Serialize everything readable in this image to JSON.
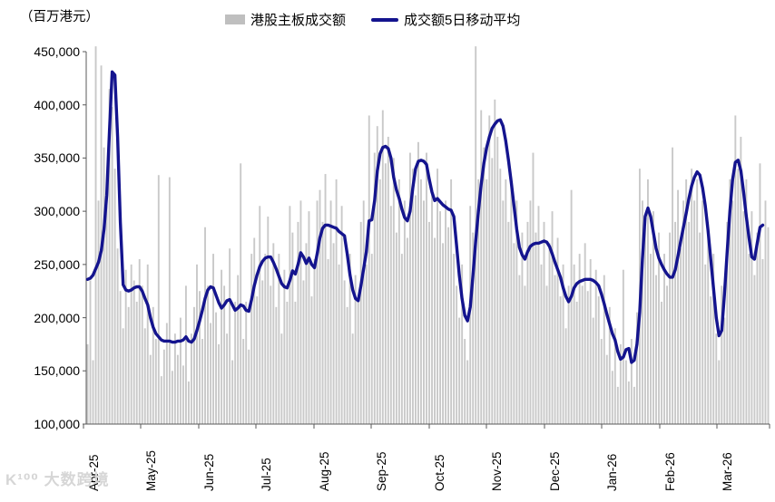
{
  "unit_label": "（百万港元）",
  "legend": {
    "bars": "港股主板成交额",
    "line": "成交额5日移动平均"
  },
  "watermark": {
    "logo": "K¹⁰⁰",
    "text": "大数跨境"
  },
  "chart_data": {
    "type": "bar",
    "subtype": "daily bars with 5-day moving-average line overlay",
    "title": "",
    "ylabel": "（百万港元）",
    "ylim": [
      100000,
      450000
    ],
    "ytick_labels": [
      "450,000",
      "400,000",
      "350,000",
      "300,000",
      "250,000",
      "200,000",
      "150,000",
      "100,000"
    ],
    "x_labels": [
      "Apr-25",
      "May-25",
      "Jun-25",
      "Jul-25",
      "Aug-25",
      "Sep-25",
      "Oct-25",
      "Nov-25",
      "Dec-25",
      "Jan-26",
      "Feb-26",
      "Mar-26"
    ],
    "grid": false,
    "legend_position": "top-center",
    "colors": {
      "bar": "#c9c9c9",
      "line": "#14148E",
      "axis": "#595959",
      "text": "#000000"
    },
    "series": [
      {
        "name": "港股主板成交额",
        "type": "bar",
        "color": "#c9c9c9",
        "values": [
          175000,
          235000,
          160000,
          455000,
          310000,
          437000,
          360000,
          305000,
          415000,
          398000,
          340000,
          265000,
          225000,
          190000,
          245000,
          210000,
          250000,
          235000,
          215000,
          255000,
          230000,
          190000,
          250000,
          165000,
          210000,
          180000,
          334000,
          145000,
          170000,
          195000,
          332000,
          150000,
          185000,
          165000,
          200000,
          155000,
          230000,
          140000,
          185000,
          210000,
          250000,
          225000,
          180000,
          285000,
          230000,
          195000,
          260000,
          205000,
          175000,
          245000,
          230000,
          185000,
          265000,
          160000,
          215000,
          240000,
          345000,
          180000,
          215000,
          170000,
          260000,
          275000,
          220000,
          305000,
          235000,
          260000,
          295000,
          230000,
          270000,
          210000,
          260000,
          185000,
          245000,
          215000,
          305000,
          280000,
          215000,
          290000,
          310000,
          235000,
          270000,
          300000,
          220000,
          255000,
          310000,
          320000,
          290000,
          335000,
          255000,
          310000,
          270000,
          330000,
          250000,
          305000,
          235000,
          210000,
          260000,
          185000,
          240000,
          215000,
          290000,
          310000,
          250000,
          390000,
          260000,
          355000,
          380000,
          330000,
          395000,
          345000,
          370000,
          305000,
          350000,
          280000,
          330000,
          260000,
          310000,
          275000,
          355000,
          340000,
          315000,
          365000,
          330000,
          310000,
          355000,
          290000,
          320000,
          275000,
          340000,
          300000,
          270000,
          310000,
          285000,
          330000,
          260000,
          230000,
          200000,
          250000,
          180000,
          160000,
          305000,
          280000,
          455000,
          330000,
          395000,
          360000,
          330000,
          390000,
          350000,
          405000,
          370000,
          340000,
          310000,
          330000,
          290000,
          330000,
          270000,
          310000,
          240000,
          280000,
          230000,
          290000,
          310000,
          355000,
          280000,
          305000,
          250000,
          290000,
          230000,
          270000,
          300000,
          240000,
          275000,
          220000,
          250000,
          190000,
          230000,
          320000,
          250000,
          215000,
          260000,
          230000,
          270000,
          225000,
          255000,
          200000,
          245000,
          220000,
          180000,
          240000,
          165000,
          210000,
          150000,
          190000,
          135000,
          175000,
          245000,
          160000,
          140000,
          180000,
          135000,
          205000,
          340000,
          310000,
          285000,
          330000,
          260000,
          300000,
          240000,
          280000,
          215000,
          260000,
          230000,
          280000,
          360000,
          290000,
          320000,
          265000,
          310000,
          330000,
          290000,
          340000,
          310000,
          330000,
          280000,
          310000,
          250000,
          290000,
          220000,
          260000,
          185000,
          160000,
          230000,
          200000,
          290000,
          330000,
          310000,
          390000,
          340000,
          370000,
          300000,
          330000,
          260000,
          300000,
          240000,
          280000,
          345000,
          255000,
          310000,
          285000
        ]
      },
      {
        "name": "成交额5日移动平均",
        "type": "line",
        "color": "#14148E",
        "values": [
          236000,
          237000,
          240000,
          246000,
          252000,
          263000,
          283000,
          315000,
          375000,
          431000,
          428000,
          370000,
          290000,
          231000,
          226000,
          225000,
          226000,
          228000,
          229000,
          229000,
          225000,
          218000,
          212000,
          200000,
          191000,
          185000,
          182000,
          179000,
          178000,
          178000,
          178000,
          177000,
          177000,
          178000,
          178000,
          179000,
          182000,
          178000,
          177000,
          180000,
          188000,
          197000,
          207000,
          218000,
          226000,
          229000,
          228000,
          221000,
          214000,
          209000,
          212000,
          216000,
          217000,
          212000,
          207000,
          209000,
          212000,
          211000,
          207000,
          206000,
          217000,
          230000,
          240000,
          248000,
          253000,
          256000,
          257000,
          257000,
          252000,
          246000,
          239000,
          232000,
          229000,
          228000,
          235000,
          244000,
          241000,
          250000,
          261000,
          257000,
          251000,
          256000,
          250000,
          247000,
          260000,
          275000,
          284000,
          287000,
          287000,
          286000,
          285000,
          284000,
          281000,
          279000,
          277000,
          260000,
          240000,
          226000,
          218000,
          216000,
          230000,
          246000,
          262000,
          291000,
          292000,
          310000,
          338000,
          354000,
          360000,
          361000,
          359000,
          350000,
          332000,
          320000,
          312000,
          302000,
          294000,
          291000,
          300000,
          322000,
          340000,
          347000,
          348000,
          347000,
          344000,
          330000,
          318000,
          310000,
          312000,
          309000,
          306000,
          304000,
          302000,
          301000,
          295000,
          268000,
          240000,
          218000,
          202000,
          197000,
          210000,
          240000,
          272000,
          300000,
          325000,
          345000,
          360000,
          370000,
          378000,
          382000,
          385000,
          386000,
          380000,
          366000,
          348000,
          327000,
          305000,
          283000,
          266000,
          259000,
          255000,
          262000,
          267000,
          269000,
          270000,
          270000,
          271000,
          272000,
          271000,
          267000,
          260000,
          252000,
          245000,
          238000,
          228000,
          220000,
          215000,
          220000,
          228000,
          232000,
          234000,
          235000,
          236000,
          236000,
          236000,
          235000,
          233000,
          230000,
          222000,
          213000,
          203000,
          194000,
          185000,
          179000,
          168000,
          161000,
          163000,
          170000,
          171000,
          158000,
          160000,
          175000,
          205000,
          255000,
          295000,
          303000,
          295000,
          280000,
          265000,
          256000,
          250000,
          245000,
          241000,
          238000,
          238000,
          245000,
          258000,
          272000,
          285000,
          298000,
          312000,
          324000,
          332000,
          337000,
          334000,
          322000,
          305000,
          282000,
          255000,
          228000,
          200000,
          183000,
          188000,
          222000,
          262000,
          300000,
          330000,
          346000,
          348000,
          338000,
          318000,
          295000,
          275000,
          257000,
          255000,
          270000,
          285000,
          287000
        ]
      }
    ]
  }
}
